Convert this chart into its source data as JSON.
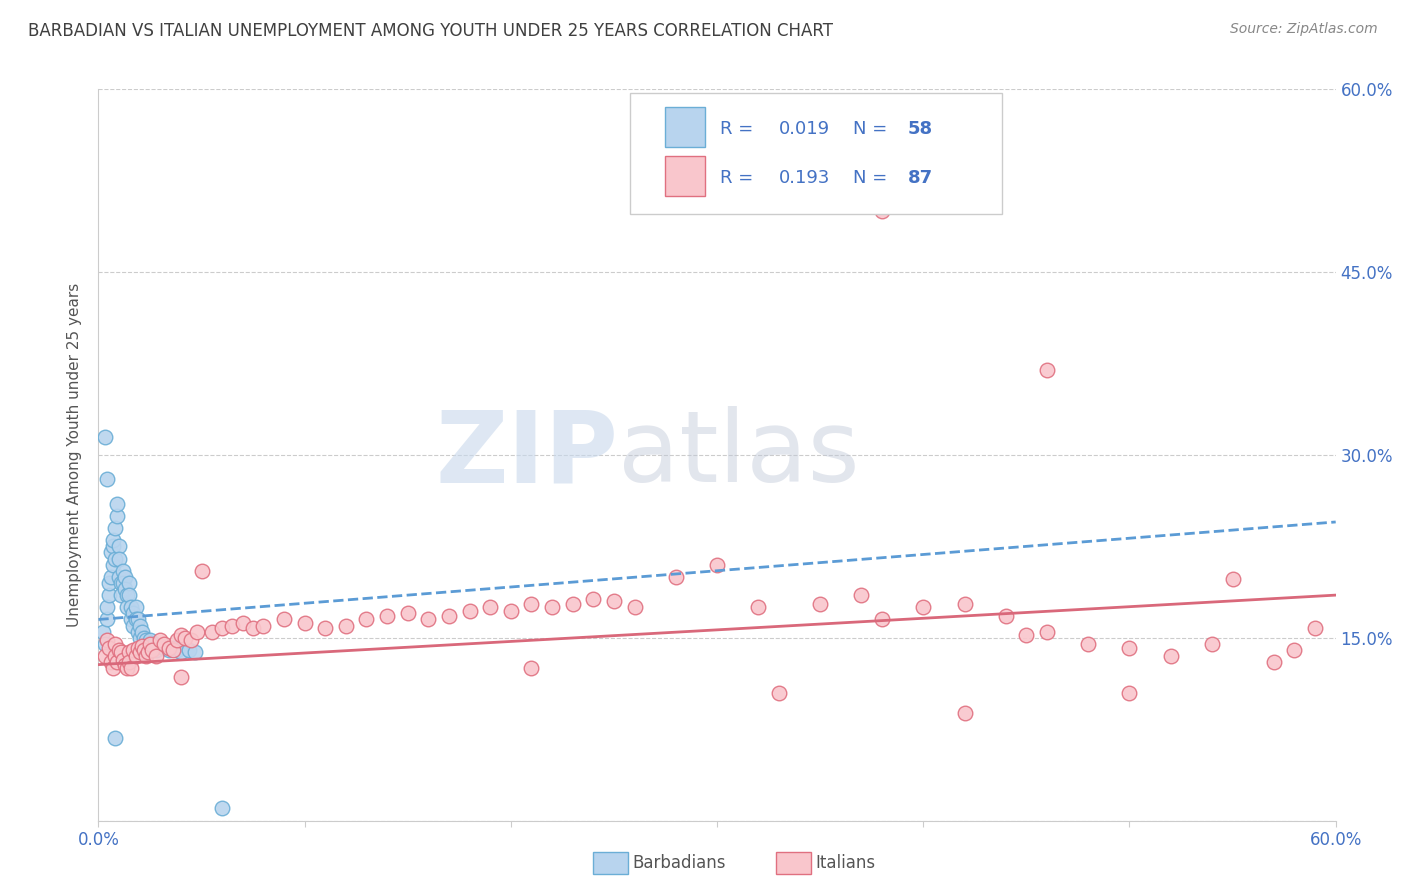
{
  "title": "BARBADIAN VS ITALIAN UNEMPLOYMENT AMONG YOUTH UNDER 25 YEARS CORRELATION CHART",
  "source": "Source: ZipAtlas.com",
  "ylabel": "Unemployment Among Youth under 25 years",
  "xlim": [
    0.0,
    0.6
  ],
  "ylim": [
    0.0,
    0.6
  ],
  "barbadian_R": 0.019,
  "barbadian_N": 58,
  "italian_R": 0.193,
  "italian_N": 87,
  "barbadian_color": "#b8d4ee",
  "barbadian_edge": "#6baed6",
  "italian_color": "#f9c6cc",
  "italian_edge": "#e07080",
  "barbadian_line_color": "#5b9bd5",
  "italian_line_color": "#d9687a",
  "text_color_blue": "#4472C4",
  "grid_color": "#cccccc",
  "label_color": "#4472C4",
  "title_color": "#404040",
  "watermark_zip_color": "#c8d8ec",
  "watermark_atlas_color": "#c0c8d8"
}
